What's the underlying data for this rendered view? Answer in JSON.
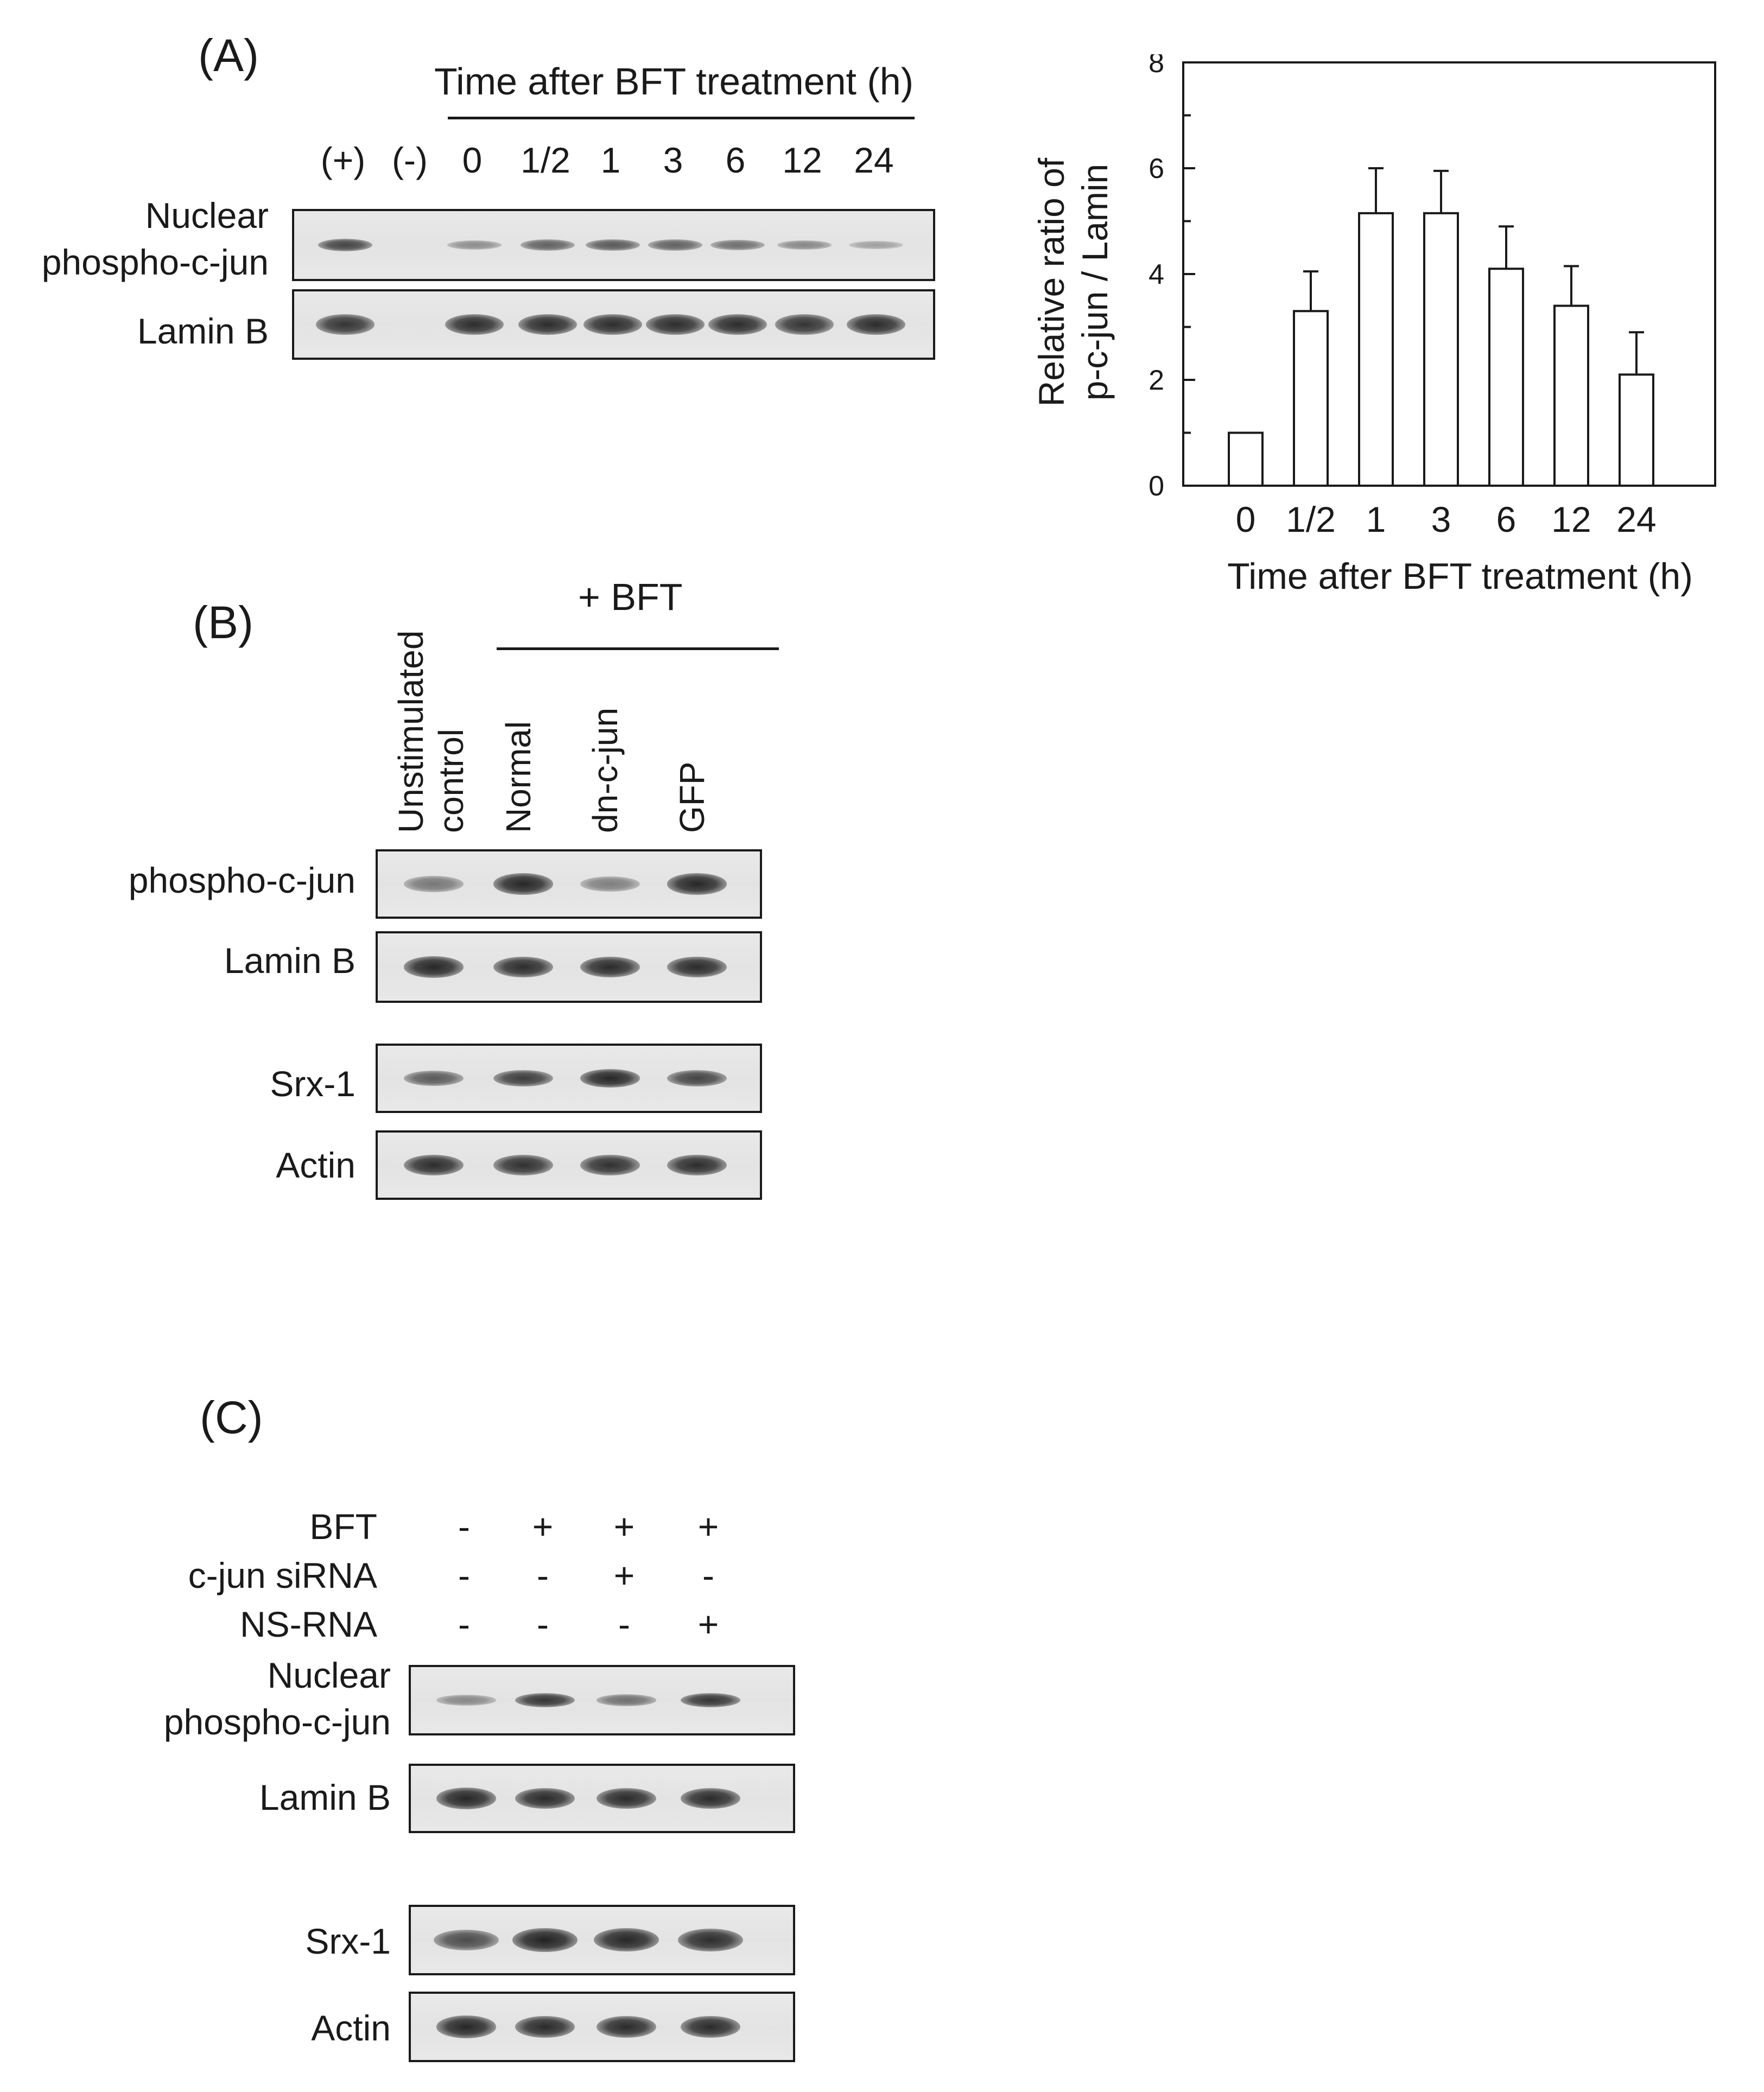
{
  "panelA": {
    "label": "(A)",
    "time_header": "Time after BFT treatment  (h)",
    "lanes": [
      "(+)",
      "(-)",
      "0",
      "1/2",
      "1",
      "3",
      "6",
      "12",
      "24"
    ],
    "rows": [
      {
        "label_line1": "Nuclear",
        "label_line2": "phospho-c-jun",
        "intensities": [
          0.75,
          0,
          0.25,
          0.55,
          0.6,
          0.55,
          0.45,
          0.3,
          0.12
        ]
      },
      {
        "label_line1": "Lamin B",
        "label_line2": "",
        "intensities": [
          0.85,
          0,
          0.9,
          0.9,
          0.9,
          0.9,
          0.9,
          0.85,
          0.9
        ]
      }
    ]
  },
  "panelB": {
    "label": "(B)",
    "group_label": "+ BFT",
    "lanes": [
      {
        "line1": "Unstimulated",
        "line2": "control"
      },
      {
        "line1": "Normal",
        "line2": ""
      },
      {
        "line1": "dn-c-jun",
        "line2": ""
      },
      {
        "line1": "GFP",
        "line2": ""
      }
    ],
    "rows": [
      {
        "label": "phospho-c-jun",
        "intensities": [
          0.4,
          0.95,
          0.35,
          0.95
        ]
      },
      {
        "label": "Lamin B",
        "intensities": [
          0.95,
          0.9,
          0.92,
          0.92
        ]
      },
      {
        "label": "Srx-1",
        "intensities": [
          0.6,
          0.8,
          0.95,
          0.75
        ]
      },
      {
        "label": "Actin",
        "intensities": [
          0.9,
          0.88,
          0.88,
          0.9
        ]
      }
    ]
  },
  "panelC": {
    "label": "(C)",
    "conditions": [
      {
        "label": "BFT",
        "signs": [
          "-",
          "+",
          "+",
          "+"
        ]
      },
      {
        "label": "c-jun  siRNA",
        "signs": [
          "-",
          "-",
          "+",
          "-"
        ]
      },
      {
        "label": "NS-RNA",
        "signs": [
          "-",
          "-",
          "-",
          "+"
        ]
      }
    ],
    "rows": [
      {
        "label_line1": "Nuclear",
        "label_line2": "phospho-c-jun",
        "intensities": [
          0.3,
          0.85,
          0.45,
          0.85
        ]
      },
      {
        "label_line1": "Lamin B",
        "label_line2": "",
        "intensities": [
          0.95,
          0.92,
          0.92,
          0.92
        ]
      },
      {
        "label_line1": "Srx-1",
        "label_line2": "",
        "intensities": [
          0.7,
          0.98,
          0.95,
          0.9
        ]
      },
      {
        "label_line1": "Actin",
        "label_line2": "",
        "intensities": [
          0.95,
          0.92,
          0.92,
          0.92
        ]
      }
    ]
  },
  "chart_data": {
    "type": "bar",
    "categories": [
      "0",
      "1/2",
      "1",
      "3",
      "6",
      "12",
      "24"
    ],
    "values": [
      1.0,
      3.3,
      5.15,
      5.15,
      4.1,
      3.4,
      2.1
    ],
    "errors": [
      0,
      0.75,
      0.85,
      0.8,
      0.8,
      0.75,
      0.8
    ],
    "title": "",
    "xlabel": "Time after  BFT treatment  (h)",
    "ylabel_line1": "Relative ratio of",
    "ylabel_line2": "p-c-jun / Lamin",
    "ylim": [
      0,
      8
    ],
    "yticks": [
      "0",
      "2",
      "4",
      "6",
      "8"
    ],
    "grid": false,
    "bar_fill": "#ffffff",
    "bar_stroke": "#1a1a1a"
  }
}
